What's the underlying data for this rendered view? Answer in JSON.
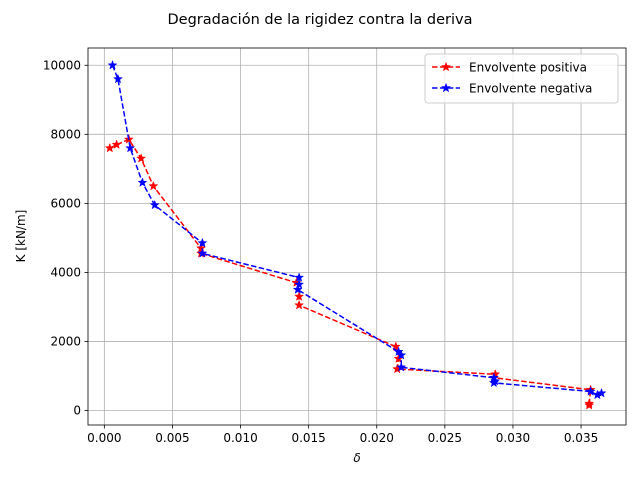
{
  "chart_data": {
    "type": "line",
    "title": "Degradación de la rigidez contra la deriva",
    "xlabel": "δ",
    "ylabel": "K [kN/m]",
    "xlim": [
      -0.0012,
      0.0383
    ],
    "ylim": [
      -420,
      10500
    ],
    "xticks": [
      0.0,
      0.005,
      0.01,
      0.015,
      0.02,
      0.025,
      0.03,
      0.035
    ],
    "xtick_labels": [
      "0.000",
      "0.005",
      "0.010",
      "0.015",
      "0.020",
      "0.025",
      "0.030",
      "0.035"
    ],
    "yticks": [
      0,
      2000,
      4000,
      6000,
      8000,
      10000
    ],
    "ytick_labels": [
      "0",
      "2000",
      "4000",
      "6000",
      "8000",
      "10000"
    ],
    "grid": true,
    "legend_position": "top-right",
    "series": [
      {
        "name": "Envolvente positiva",
        "color": "#ff0000",
        "linestyle": "dashed",
        "marker": "star",
        "x": [
          0.0004,
          0.0009,
          0.0018,
          0.0027,
          0.0036,
          0.0071,
          0.0071,
          0.0141,
          0.0143,
          0.0143,
          0.0214,
          0.0216,
          0.0215,
          0.0287,
          0.0286,
          0.0357,
          0.0356,
          0.0356
        ],
        "y": [
          7600,
          7700,
          7850,
          7300,
          6500,
          4700,
          4550,
          3700,
          3300,
          3050,
          1850,
          1500,
          1200,
          1050,
          950,
          600,
          200,
          150
        ]
      },
      {
        "name": "Envolvente negativa",
        "color": "#0000ff",
        "linestyle": "dashed",
        "marker": "star",
        "x": [
          0.0006,
          0.001,
          0.0019,
          0.0028,
          0.0037,
          0.0072,
          0.0072,
          0.0143,
          0.0143,
          0.0142,
          0.0216,
          0.0218,
          0.0218,
          0.0286,
          0.0287,
          0.0286,
          0.0357,
          0.0362,
          0.0365
        ],
        "y": [
          10000,
          9600,
          7600,
          6600,
          5950,
          4850,
          4550,
          3850,
          3650,
          3500,
          1700,
          1600,
          1250,
          950,
          850,
          800,
          550,
          450,
          500
        ]
      }
    ]
  }
}
